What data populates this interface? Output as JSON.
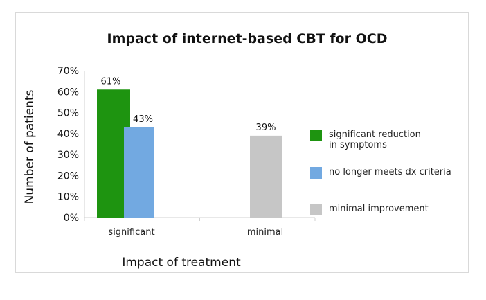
{
  "chart_data": {
    "type": "bar",
    "title": "Impact of internet-based CBT for OCD",
    "xlabel": "Impact of treatment",
    "ylabel": "Number of patients",
    "categories": [
      "significant",
      "minimal"
    ],
    "series": [
      {
        "name": "significant reduction in symptoms",
        "legend_lines": [
          "significant reduction",
          "in symptoms"
        ],
        "color": "#1e9410",
        "values": [
          61,
          null
        ],
        "labels": [
          "61%",
          ""
        ]
      },
      {
        "name": "no longer meets dx criteria",
        "legend_lines": [
          "no longer meets dx criteria"
        ],
        "color": "#72a9e1",
        "values": [
          43,
          null
        ],
        "labels": [
          "43%",
          ""
        ]
      },
      {
        "name": "minimal improvement",
        "legend_lines": [
          "minimal improvement"
        ],
        "color": "#c6c6c6",
        "values": [
          null,
          39
        ],
        "labels": [
          "",
          "39%"
        ]
      }
    ],
    "ylim": [
      0,
      70
    ],
    "yticks": [
      {
        "value": 0,
        "label": "0%"
      },
      {
        "value": 10,
        "label": "10%"
      },
      {
        "value": 20,
        "label": "20%"
      },
      {
        "value": 30,
        "label": "30%"
      },
      {
        "value": 40,
        "label": "40%"
      },
      {
        "value": 50,
        "label": "50%"
      },
      {
        "value": 60,
        "label": "60%"
      },
      {
        "value": 70,
        "label": "70%"
      }
    ],
    "grid": false,
    "legend_position": "right"
  }
}
